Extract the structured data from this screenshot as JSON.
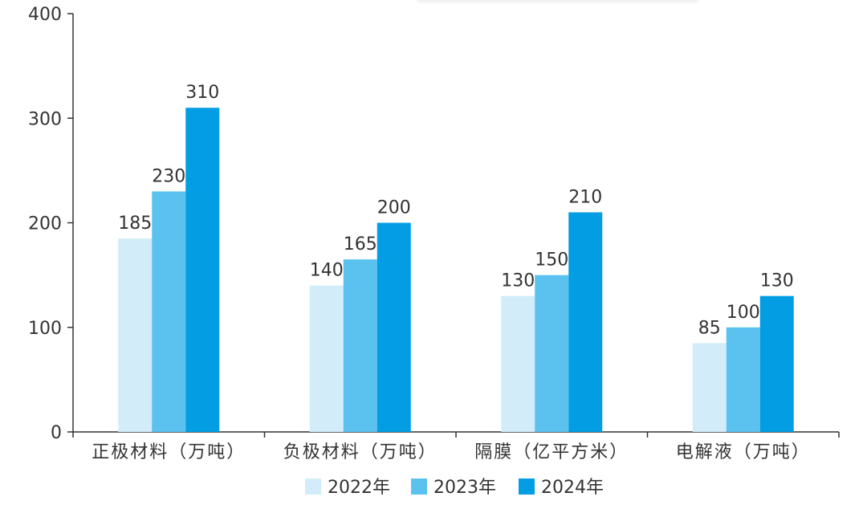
{
  "chart_data": {
    "type": "bar",
    "categories": [
      "正极材料（万吨）",
      "负极材料（万吨）",
      "隔膜（亿平方米）",
      "电解液（万吨）"
    ],
    "series": [
      {
        "name": "2022年",
        "values": [
          185,
          140,
          130,
          85
        ],
        "color": "#d3ecf9"
      },
      {
        "name": "2023年",
        "values": [
          230,
          165,
          150,
          100
        ],
        "color": "#5bc2f0"
      },
      {
        "name": "2024年",
        "values": [
          310,
          200,
          210,
          130
        ],
        "color": "#029de2"
      }
    ],
    "yticks": [
      0,
      100,
      200,
      300,
      400
    ],
    "ylim": [
      0,
      400
    ],
    "title": "",
    "xlabel": "",
    "ylabel": "",
    "grid": false,
    "legend": "bottom-center"
  }
}
